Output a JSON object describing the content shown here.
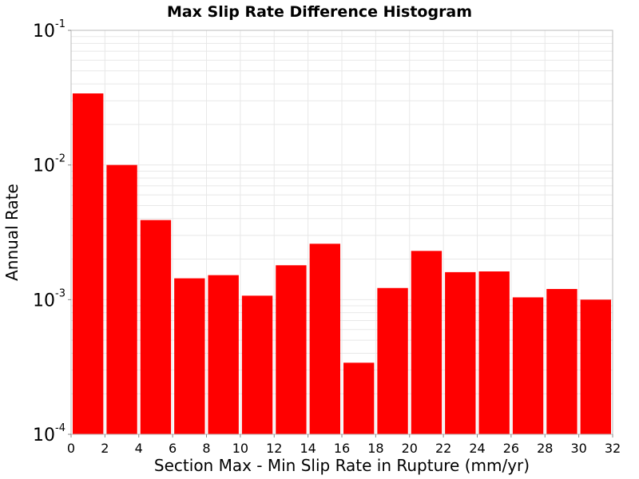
{
  "chart_data": {
    "type": "bar",
    "title": "Max Slip Rate Difference Histogram",
    "xlabel": "Section Max - Min Slip Rate in Rupture (mm/yr)",
    "ylabel": "Annual Rate",
    "x_scale": "linear",
    "y_scale": "log",
    "xlim": [
      0,
      32
    ],
    "ylim": [
      0.0001,
      0.1
    ],
    "x_ticks": [
      "0",
      "2",
      "4",
      "6",
      "8",
      "10",
      "12",
      "14",
      "16",
      "18",
      "20",
      "22",
      "24",
      "26",
      "28",
      "30",
      "32"
    ],
    "y_ticks": [
      {
        "base": "10",
        "exp": "-4"
      },
      {
        "base": "10",
        "exp": "-3"
      },
      {
        "base": "10",
        "exp": "-2"
      },
      {
        "base": "10",
        "exp": "-1"
      }
    ],
    "grid": true,
    "bin_width": 2,
    "bins": [
      {
        "x0": 0,
        "x1": 2,
        "value": 0.034
      },
      {
        "x0": 2,
        "x1": 4,
        "value": 0.01
      },
      {
        "x0": 4,
        "x1": 6,
        "value": 0.0039
      },
      {
        "x0": 6,
        "x1": 8,
        "value": 0.00144
      },
      {
        "x0": 8,
        "x1": 10,
        "value": 0.00152
      },
      {
        "x0": 10,
        "x1": 12,
        "value": 0.00107
      },
      {
        "x0": 12,
        "x1": 14,
        "value": 0.0018
      },
      {
        "x0": 14,
        "x1": 16,
        "value": 0.0026
      },
      {
        "x0": 16,
        "x1": 18,
        "value": 0.00034
      },
      {
        "x0": 18,
        "x1": 20,
        "value": 0.00122
      },
      {
        "x0": 20,
        "x1": 22,
        "value": 0.0023
      },
      {
        "x0": 22,
        "x1": 24,
        "value": 0.0016
      },
      {
        "x0": 24,
        "x1": 26,
        "value": 0.00162
      },
      {
        "x0": 26,
        "x1": 28,
        "value": 0.00104
      },
      {
        "x0": 28,
        "x1": 30,
        "value": 0.0012
      },
      {
        "x0": 30,
        "x1": 32,
        "value": 0.001
      }
    ],
    "colors": {
      "bar": "#ff0000",
      "grid": "#e8e8e8",
      "frame": "#bbbbbb"
    }
  }
}
